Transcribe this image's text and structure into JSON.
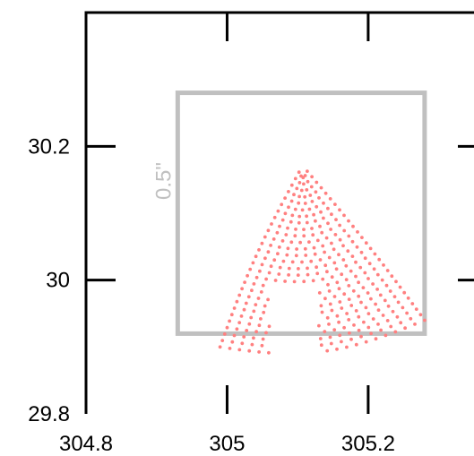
{
  "chart_data": {
    "type": "scatter",
    "title": "",
    "xlabel": "",
    "ylabel": "",
    "xlim": [
      304.8,
      305.35
    ],
    "ylim": [
      29.8,
      30.4
    ],
    "x_ticks": [
      304.8,
      305,
      305.2
    ],
    "x_tick_labels": [
      "304.8",
      "305",
      "305.2"
    ],
    "y_ticks": [
      29.8,
      30,
      30.2
    ],
    "y_tick_labels": [
      "29.8",
      "30",
      "30.2"
    ],
    "grid": false,
    "scale_box": {
      "label": "0.5\"",
      "x": [
        304.93,
        305.28
      ],
      "y": [
        29.92,
        30.28
      ],
      "color": "#c0c0c0"
    },
    "point_color": "#ff8080",
    "cloud": {
      "apex": [
        305.107,
        30.171
      ],
      "bottom_left": [
        304.99,
        29.9
      ],
      "bottom_right": [
        305.28,
        29.94
      ],
      "notch": {
        "x": [
          305.06,
          305.13
        ],
        "y_top": 29.995
      },
      "rows": 28,
      "cols": 22
    }
  }
}
